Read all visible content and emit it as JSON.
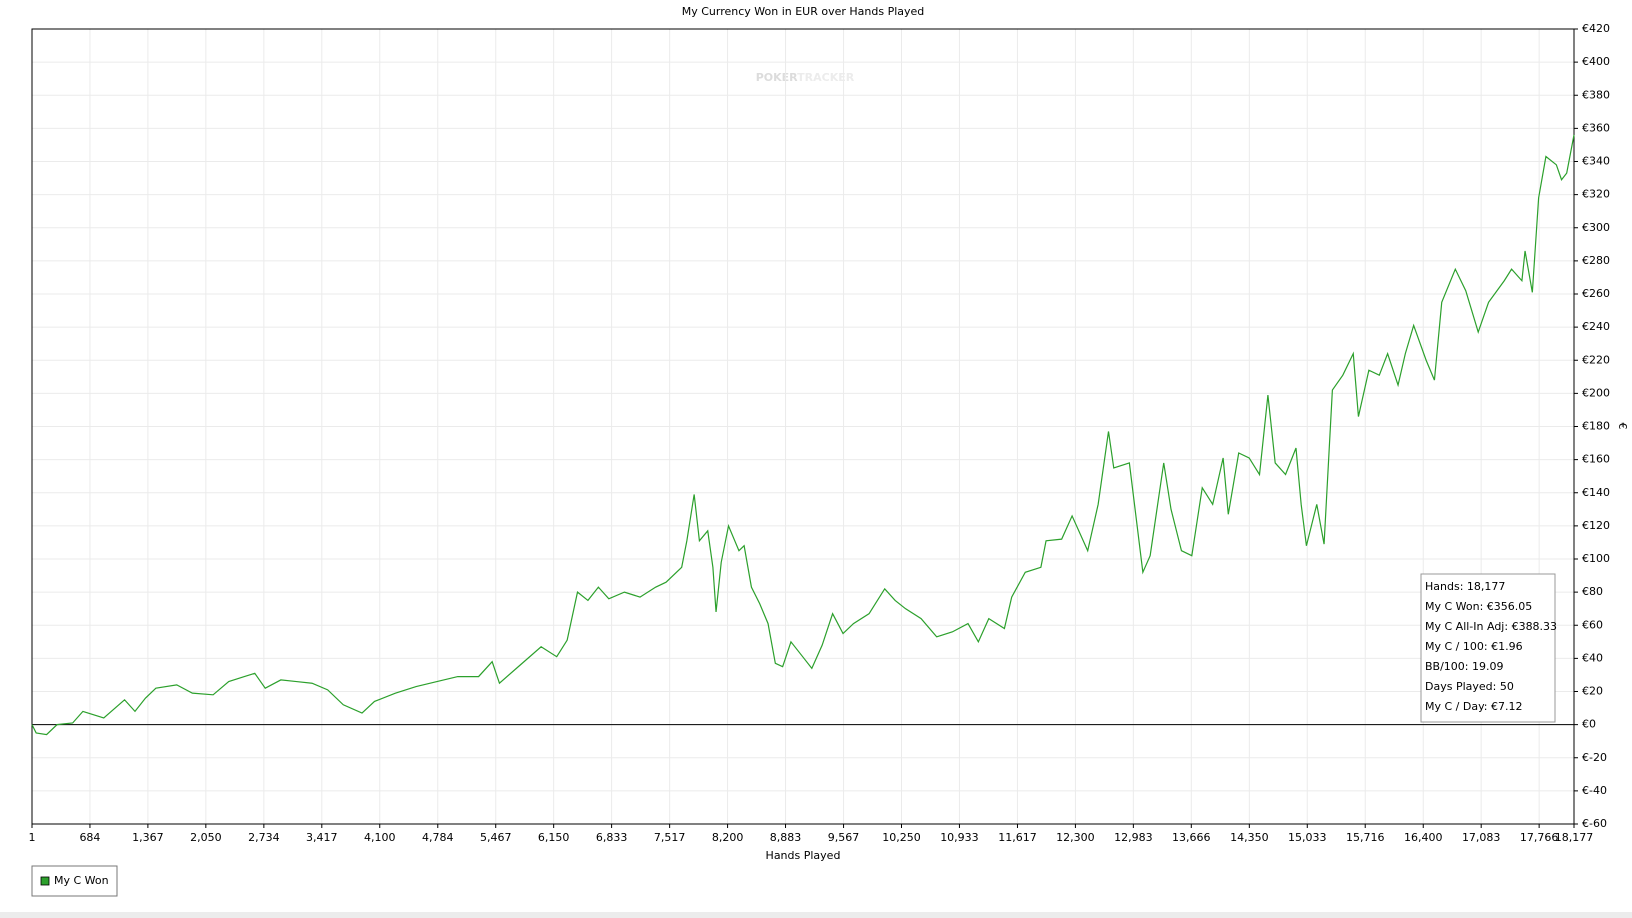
{
  "chart_data": {
    "type": "line",
    "title": "My Currency Won in EUR over Hands Played",
    "x_label": "Hands Played",
    "y_label": "€",
    "watermark": [
      "POKER",
      "TRACKER"
    ],
    "x": [
      1,
      50,
      173,
      296,
      480,
      601,
      847,
      1092,
      1215,
      1338,
      1461,
      1707,
      1891,
      2136,
      2320,
      2504,
      2627,
      2750,
      2934,
      3118,
      3302,
      3486,
      3670,
      3891,
      4038,
      4284,
      4529,
      4774,
      5020,
      5265,
      5425,
      5511,
      5756,
      6002,
      6186,
      6309,
      6431,
      6554,
      6677,
      6800,
      6984,
      7168,
      7352,
      7475,
      7659,
      7720,
      7806,
      7868,
      7966,
      8027,
      8064,
      8125,
      8211,
      8334,
      8395,
      8481,
      8579,
      8677,
      8763,
      8849,
      8947,
      9070,
      9193,
      9315,
      9438,
      9561,
      9684,
      9868,
      10052,
      10175,
      10297,
      10481,
      10665,
      10850,
      11034,
      11156,
      11279,
      11463,
      11549,
      11709,
      11893,
      11954,
      12138,
      12261,
      12445,
      12568,
      12690,
      12752,
      12936,
      13095,
      13181,
      13341,
      13427,
      13550,
      13672,
      13795,
      13918,
      14041,
      14102,
      14225,
      14348,
      14470,
      14569,
      14655,
      14777,
      14900,
      14961,
      15023,
      15145,
      15231,
      15329,
      15452,
      15575,
      15636,
      15759,
      15882,
      15980,
      16103,
      16189,
      16287,
      16434,
      16532,
      16618,
      16778,
      16901,
      17048,
      17170,
      17355,
      17441,
      17563,
      17600,
      17686,
      17760,
      17846,
      17969,
      18030,
      18091,
      18177
    ],
    "series": [
      {
        "name": "My C Won",
        "color": "#2ca02c",
        "values": [
          0,
          -5,
          -6,
          0,
          1,
          8,
          4,
          15,
          8,
          16,
          22,
          24,
          19,
          18,
          26,
          29,
          31,
          22,
          27,
          26,
          25,
          21,
          12,
          7,
          14,
          19,
          23,
          26,
          29,
          29,
          38,
          25,
          36,
          47,
          41,
          51,
          80,
          75,
          83,
          76,
          80,
          77,
          83,
          86,
          95,
          111,
          139,
          111,
          117,
          95,
          68,
          98,
          120,
          105,
          108,
          83,
          73,
          61,
          37,
          35,
          50,
          42,
          34,
          48,
          67,
          55,
          61,
          67,
          82,
          75,
          70,
          64,
          53,
          56,
          61,
          50,
          64,
          58,
          77,
          92,
          95,
          111,
          112,
          126,
          105,
          133,
          177,
          155,
          158,
          92,
          102,
          158,
          130,
          105,
          102,
          143,
          133,
          161,
          127,
          164,
          161,
          151,
          199,
          158,
          151,
          167,
          133,
          108,
          133,
          109,
          202,
          211,
          224,
          186,
          214,
          211,
          224,
          205,
          224,
          241,
          220,
          208,
          255,
          275,
          262,
          237,
          255,
          268,
          275,
          268,
          286,
          261,
          318,
          343,
          338,
          329,
          333,
          356.05
        ]
      }
    ],
    "xlim": [
      1,
      18177
    ],
    "xticks": [
      1,
      {
        "value": 684,
        "label": "684"
      },
      {
        "value": 1367,
        "label": "1,367"
      },
      {
        "value": 2050,
        "label": "2,050"
      },
      {
        "value": 2734,
        "label": "2,734"
      },
      {
        "value": 3417,
        "label": "3,417"
      },
      {
        "value": 4100,
        "label": "4,100"
      },
      {
        "value": 4784,
        "label": "4,784"
      },
      {
        "value": 5467,
        "label": "5,467"
      },
      {
        "value": 6150,
        "label": "6,150"
      },
      {
        "value": 6833,
        "label": "6,833"
      },
      {
        "value": 7517,
        "label": "7,517"
      },
      {
        "value": 8200,
        "label": "8,200"
      },
      {
        "value": 8883,
        "label": "8,883"
      },
      {
        "value": 9567,
        "label": "9,567"
      },
      {
        "value": 10250,
        "label": "10,250"
      },
      {
        "value": 10933,
        "label": "10,933"
      },
      {
        "value": 11617,
        "label": "11,617"
      },
      {
        "value": 12300,
        "label": "12,300"
      },
      {
        "value": 12983,
        "label": "12,983"
      },
      {
        "value": 13666,
        "label": "13,666"
      },
      {
        "value": 14350,
        "label": "14,350"
      },
      {
        "value": 15033,
        "label": "15,033"
      },
      {
        "value": 15716,
        "label": "15,716"
      },
      {
        "value": 16400,
        "label": "16,400"
      },
      {
        "value": 17083,
        "label": "17,083"
      },
      {
        "value": 17766,
        "label": "17,766"
      },
      {
        "value": 18177,
        "label": "18,177"
      }
    ],
    "ylim": [
      -60,
      420
    ],
    "yticks": [
      {
        "value": -60,
        "label": "€-60"
      },
      {
        "value": -40,
        "label": "€-40"
      },
      {
        "value": -20,
        "label": "€-20"
      },
      {
        "value": 0,
        "label": "€0"
      },
      {
        "value": 20,
        "label": "€20"
      },
      {
        "value": 40,
        "label": "€40"
      },
      {
        "value": 60,
        "label": "€60"
      },
      {
        "value": 80,
        "label": "€80"
      },
      {
        "value": 100,
        "label": "€100"
      },
      {
        "value": 120,
        "label": "€120"
      },
      {
        "value": 140,
        "label": "€140"
      },
      {
        "value": 160,
        "label": "€160"
      },
      {
        "value": 180,
        "label": "€180"
      },
      {
        "value": 200,
        "label": "€200"
      },
      {
        "value": 220,
        "label": "€220"
      },
      {
        "value": 240,
        "label": "€240"
      },
      {
        "value": 260,
        "label": "€260"
      },
      {
        "value": 280,
        "label": "€280"
      },
      {
        "value": 300,
        "label": "€300"
      },
      {
        "value": 320,
        "label": "€320"
      },
      {
        "value": 340,
        "label": "€340"
      },
      {
        "value": 360,
        "label": "€360"
      },
      {
        "value": 380,
        "label": "€380"
      },
      {
        "value": 400,
        "label": "€400"
      },
      {
        "value": 420,
        "label": "€420"
      }
    ],
    "grid": true,
    "zero_line": true,
    "legend_position": "bottom-left",
    "stats_box": [
      "Hands: 18,177",
      "My C Won: €356.05",
      "My C All-In Adj: €388.33",
      "My C / 100: €1.96",
      "BB/100: 19.09",
      "Days Played: 50",
      "My C / Day: €7.12"
    ]
  }
}
